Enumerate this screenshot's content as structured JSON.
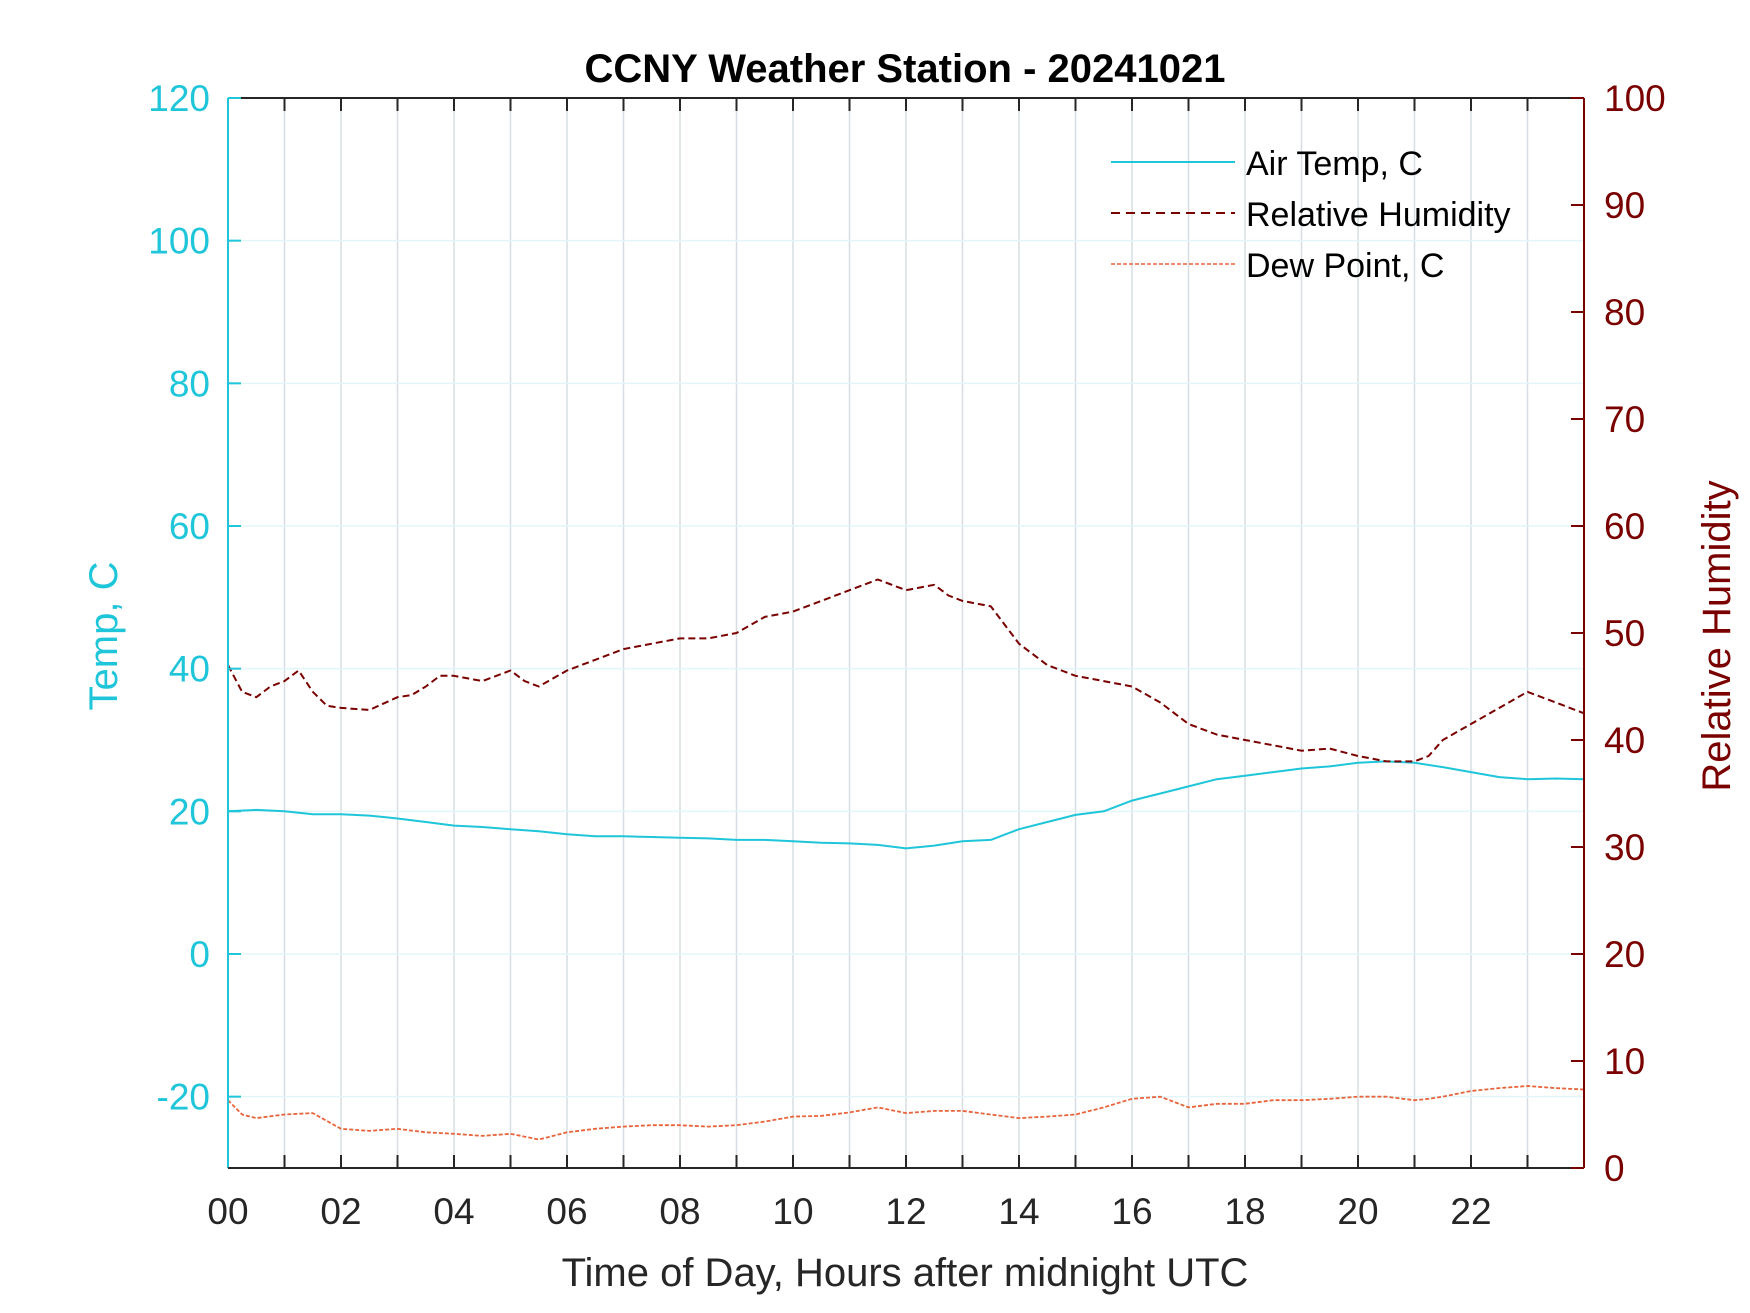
{
  "chart_data": {
    "type": "line",
    "title": "CCNY Weather Station - 20241021",
    "xlabel": "Time of Day, Hours after midnight UTC",
    "ylabel_left": "Temp, C",
    "ylabel_right": "Relative Humidity",
    "xlim": [
      0,
      24
    ],
    "ylim_left": [
      -30,
      120
    ],
    "ylim_right": [
      0,
      100
    ],
    "x_ticks": [
      0,
      2,
      4,
      6,
      8,
      10,
      12,
      14,
      16,
      18,
      20,
      22
    ],
    "x_tick_labels": [
      "00",
      "02",
      "04",
      "06",
      "08",
      "10",
      "12",
      "14",
      "16",
      "18",
      "20",
      "22"
    ],
    "y_left_ticks": [
      -20,
      0,
      20,
      40,
      60,
      80,
      100,
      120
    ],
    "y_left_tick_labels": [
      "-20",
      "0",
      "20",
      "40",
      "60",
      "80",
      "100",
      "120"
    ],
    "y_right_ticks": [
      0,
      10,
      20,
      30,
      40,
      50,
      60,
      70,
      80,
      90,
      100
    ],
    "y_right_tick_labels": [
      "0",
      "10",
      "20",
      "30",
      "40",
      "50",
      "60",
      "70",
      "80",
      "90",
      "100"
    ],
    "grid": "vertical every hour, horizontal at left-axis ticks",
    "legend_position": "top-right",
    "colors": {
      "air_temp": "#1fc5d9",
      "humidity": "#7a0000",
      "dew_point": "#e8643a",
      "left_axis": "#1fc5d9",
      "right_axis": "#7a0000",
      "grid": "#d7dde2"
    },
    "series": [
      {
        "name": "Air Temp, C",
        "axis": "left",
        "style": "solid",
        "x": [
          0,
          0.5,
          1,
          1.5,
          2,
          2.5,
          3,
          3.5,
          4,
          4.5,
          5,
          5.5,
          6,
          6.5,
          7,
          7.5,
          8,
          8.5,
          9,
          9.5,
          10,
          10.5,
          11,
          11.5,
          12,
          12.5,
          13,
          13.5,
          14,
          14.5,
          15,
          15.5,
          16,
          16.5,
          17,
          17.5,
          18,
          18.5,
          19,
          19.5,
          20,
          20.5,
          21,
          21.5,
          22,
          22.5,
          23,
          23.5,
          24
        ],
        "values": [
          20,
          20.2,
          20,
          19.6,
          19.6,
          19.4,
          19,
          18.5,
          18,
          17.8,
          17.5,
          17.2,
          16.8,
          16.5,
          16.5,
          16.4,
          16.3,
          16.2,
          16,
          16,
          15.8,
          15.6,
          15.5,
          15.3,
          14.8,
          15.2,
          15.8,
          16,
          17.5,
          18.5,
          19.5,
          20,
          21.5,
          22.5,
          23.5,
          24.5,
          25,
          25.5,
          26,
          26.3,
          26.8,
          27,
          26.8,
          26.2,
          25.5,
          24.8,
          24.5,
          24.6,
          24.5
        ]
      },
      {
        "name": "Relative Humidity",
        "axis": "right",
        "style": "dashed",
        "x": [
          0,
          0.25,
          0.5,
          0.75,
          1,
          1.25,
          1.5,
          1.75,
          2,
          2.5,
          3,
          3.25,
          3.5,
          3.75,
          4,
          4.5,
          5,
          5.25,
          5.5,
          6,
          6.5,
          7,
          7.5,
          8,
          8.5,
          9,
          9.5,
          10,
          10.5,
          11,
          11.5,
          12,
          12.5,
          12.75,
          13,
          13.5,
          14,
          14.5,
          15,
          15.5,
          16,
          16.5,
          17,
          17.5,
          18,
          18.5,
          19,
          19.5,
          20,
          20.5,
          21,
          21.25,
          21.5,
          22,
          22.5,
          23,
          23.5,
          24
        ],
        "values": [
          47,
          44.5,
          44,
          45,
          45.5,
          46.5,
          44.5,
          43.2,
          43,
          42.8,
          44,
          44.2,
          45,
          46,
          46,
          45.5,
          46.5,
          45.5,
          45,
          46.5,
          47.5,
          48.5,
          49,
          49.5,
          49.5,
          50,
          51.5,
          52,
          53,
          54,
          55,
          54,
          54.5,
          53.5,
          53,
          52.5,
          49,
          47,
          46,
          45.5,
          45,
          43.5,
          41.5,
          40.5,
          40,
          39.5,
          39,
          39.2,
          38.5,
          38,
          38,
          38.5,
          40,
          41.5,
          43,
          44.5,
          43.5,
          42.5
        ]
      },
      {
        "name": "Dew Point, C",
        "axis": "left",
        "style": "dashed",
        "x": [
          0,
          0.25,
          0.5,
          1,
          1.5,
          2,
          2.5,
          3,
          3.5,
          4,
          4.5,
          5,
          5.5,
          6,
          6.5,
          7,
          7.5,
          8,
          8.5,
          9,
          9.5,
          10,
          10.5,
          11,
          11.5,
          12,
          12.5,
          13,
          13.5,
          14,
          14.5,
          15,
          15.5,
          16,
          16.5,
          17,
          17.5,
          18,
          18.5,
          19,
          19.5,
          20,
          20.5,
          21,
          21.25,
          21.5,
          22,
          22.5,
          23,
          23.5,
          24
        ],
        "values": [
          -20.5,
          -22.5,
          -23,
          -22.5,
          -22.3,
          -24.5,
          -24.8,
          -24.5,
          -25,
          -25.2,
          -25.5,
          -25.2,
          -26,
          -25,
          -24.5,
          -24.2,
          -24,
          -24,
          -24.2,
          -24,
          -23.5,
          -22.8,
          -22.7,
          -22.2,
          -21.5,
          -22.3,
          -22,
          -22,
          -22.5,
          -23,
          -22.8,
          -22.5,
          -21.5,
          -20.3,
          -20,
          -21.5,
          -21,
          -21,
          -20.5,
          -20.5,
          -20.3,
          -20,
          -20,
          -20.5,
          -20.3,
          -20,
          -19.2,
          -18.8,
          -18.5,
          -18.8,
          -19
        ]
      }
    ]
  }
}
